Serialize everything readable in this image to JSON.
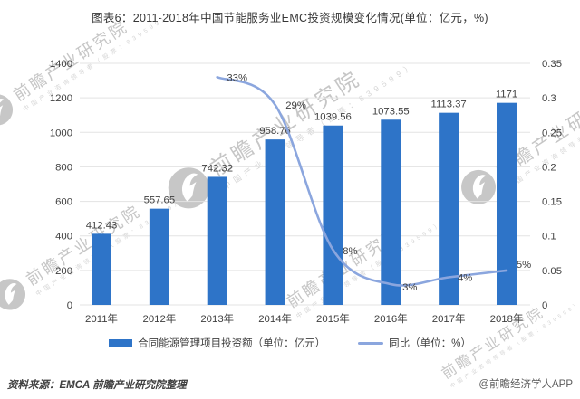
{
  "title": "图表6：2011-2018年中国节能服务业EMC投资规模变化情况(单位：亿元，%)",
  "chart_data": {
    "type": "bar",
    "categories": [
      "2011年",
      "2012年",
      "2013年",
      "2014年",
      "2015年",
      "2016年",
      "2017年",
      "2018年"
    ],
    "series": [
      {
        "name": "合同能源管理项目投资额（单位：亿元）",
        "type": "bar",
        "axis": "left",
        "values": [
          412.43,
          557.65,
          742.32,
          958.76,
          1039.56,
          1073.55,
          1113.37,
          1171
        ],
        "labels": [
          "412.43",
          "557.65",
          "742.32",
          "958.76",
          "1039.56",
          "1073.55",
          "1113.37",
          "1171"
        ]
      },
      {
        "name": "同比（单位：%）",
        "type": "line",
        "axis": "right",
        "values": [
          null,
          null,
          0.33,
          0.29,
          0.08,
          0.03,
          0.04,
          0.05
        ],
        "labels": [
          null,
          null,
          "33%",
          "29%",
          "8%",
          "3%",
          "4%",
          "5%"
        ]
      }
    ],
    "left_axis": {
      "min": 0,
      "max": 1400,
      "ticks": [
        "0",
        "200",
        "400",
        "600",
        "800",
        "1000",
        "1200",
        "1400"
      ]
    },
    "right_axis": {
      "min": 0,
      "max": 0.35,
      "ticks": [
        "0",
        "0.05",
        "0.1",
        "0.15",
        "0.2",
        "0.25",
        "0.3",
        "0.35"
      ]
    },
    "grid": true,
    "legend_position": "bottom",
    "colors": {
      "bar": "#2E74C8",
      "line": "#8BA6DE",
      "grid": "#E3E3E3",
      "text": "#404040"
    }
  },
  "legend": {
    "items": [
      {
        "label": "合同能源管理项目投资额（单位：亿元）"
      },
      {
        "label": "同比（单位：%）"
      }
    ]
  },
  "footer": {
    "source": "资料来源：EMCA 前瞻产业研究院整理",
    "credit": "@前瞻经济学人APP"
  },
  "watermark": {
    "logo": "qianzhan-logo",
    "text": "前瞻产业研究院",
    "subtext": "中国产业咨询领导者（股票：839599）"
  }
}
